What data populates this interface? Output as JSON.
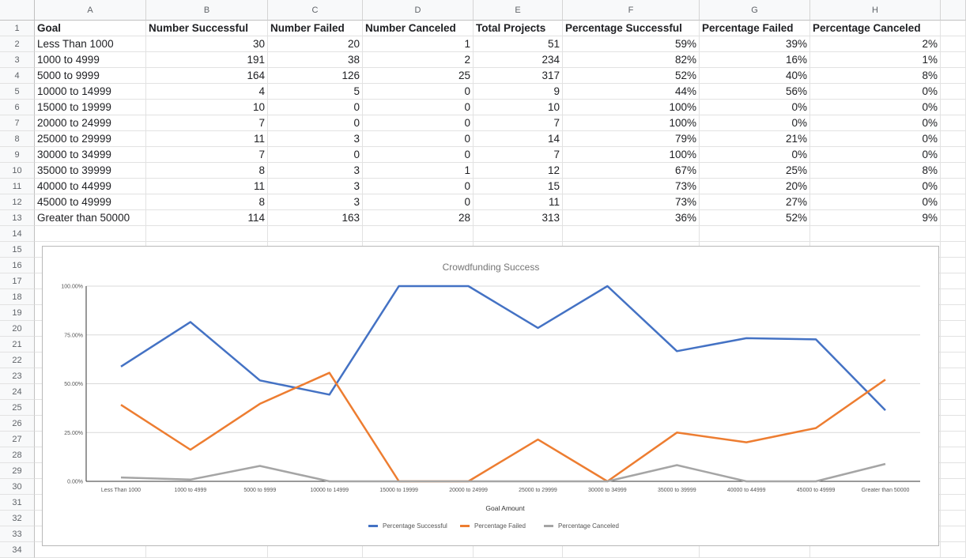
{
  "sheet": {
    "columns": [
      "A",
      "B",
      "C",
      "D",
      "E",
      "F",
      "G",
      "H"
    ],
    "row_numbers": [
      "1",
      "2",
      "3",
      "4",
      "5",
      "6",
      "7",
      "8",
      "9",
      "10",
      "11",
      "12",
      "13",
      "14",
      "15",
      "16",
      "17",
      "18",
      "19",
      "20",
      "21",
      "22",
      "23",
      "24",
      "25",
      "26",
      "27",
      "28",
      "29",
      "30",
      "31",
      "32",
      "33",
      "34"
    ],
    "headers": [
      "Goal",
      "Number Successful",
      "Number Failed",
      "Number Canceled",
      "Total Projects",
      "Percentage Successful",
      "Percentage Failed",
      "Percentage Canceled"
    ],
    "rows": [
      [
        "Less Than 1000",
        "30",
        "20",
        "1",
        "51",
        "59%",
        "39%",
        "2%"
      ],
      [
        "1000 to 4999",
        "191",
        "38",
        "2",
        "234",
        "82%",
        "16%",
        "1%"
      ],
      [
        "5000 to 9999",
        "164",
        "126",
        "25",
        "317",
        "52%",
        "40%",
        "8%"
      ],
      [
        "10000 to 14999",
        "4",
        "5",
        "0",
        "9",
        "44%",
        "56%",
        "0%"
      ],
      [
        "15000 to 19999",
        "10",
        "0",
        "0",
        "10",
        "100%",
        "0%",
        "0%"
      ],
      [
        "20000 to 24999",
        "7",
        "0",
        "0",
        "7",
        "100%",
        "0%",
        "0%"
      ],
      [
        "25000 to 29999",
        "11",
        "3",
        "0",
        "14",
        "79%",
        "21%",
        "0%"
      ],
      [
        "30000 to 34999",
        "7",
        "0",
        "0",
        "7",
        "100%",
        "0%",
        "0%"
      ],
      [
        "35000 to 39999",
        "8",
        "3",
        "1",
        "12",
        "67%",
        "25%",
        "8%"
      ],
      [
        "40000 to 44999",
        "11",
        "3",
        "0",
        "15",
        "73%",
        "20%",
        "0%"
      ],
      [
        "45000 to 49999",
        "8",
        "3",
        "0",
        "11",
        "73%",
        "27%",
        "0%"
      ],
      [
        "Greater than 50000",
        "114",
        "163",
        "28",
        "313",
        "36%",
        "52%",
        "9%"
      ]
    ]
  },
  "chart_data": {
    "type": "line",
    "title": "Crowdfunding Success",
    "xlabel": "Goal Amount",
    "ylabel": "",
    "ylim": [
      0,
      1
    ],
    "y_ticks": [
      "0.00%",
      "25.00%",
      "50.00%",
      "75.00%",
      "100.00%"
    ],
    "y_tick_values": [
      0,
      0.25,
      0.5,
      0.75,
      1
    ],
    "grid": true,
    "legend_position": "bottom",
    "categories": [
      "Less Than 1000",
      "1000 to 4999",
      "5000 to 9999",
      "10000 to 14999",
      "15000 to 19999",
      "20000 to 24999",
      "25000 to 29999",
      "30000 to 34999",
      "35000 to 39999",
      "40000 to 44999",
      "45000 to 49999",
      "Greater than 50000"
    ],
    "series": [
      {
        "name": "Percentage Successful",
        "color": "#4472c4",
        "values": [
          0.588,
          0.816,
          0.517,
          0.444,
          1.0,
          1.0,
          0.786,
          1.0,
          0.667,
          0.733,
          0.727,
          0.364
        ]
      },
      {
        "name": "Percentage Failed",
        "color": "#ed7d31",
        "values": [
          0.392,
          0.162,
          0.397,
          0.556,
          0.0,
          0.0,
          0.214,
          0.0,
          0.25,
          0.2,
          0.273,
          0.521
        ]
      },
      {
        "name": "Percentage Canceled",
        "color": "#a5a5a5",
        "values": [
          0.02,
          0.009,
          0.079,
          0.0,
          0.0,
          0.0,
          0.0,
          0.0,
          0.083,
          0.0,
          0.0,
          0.089
        ]
      }
    ]
  }
}
